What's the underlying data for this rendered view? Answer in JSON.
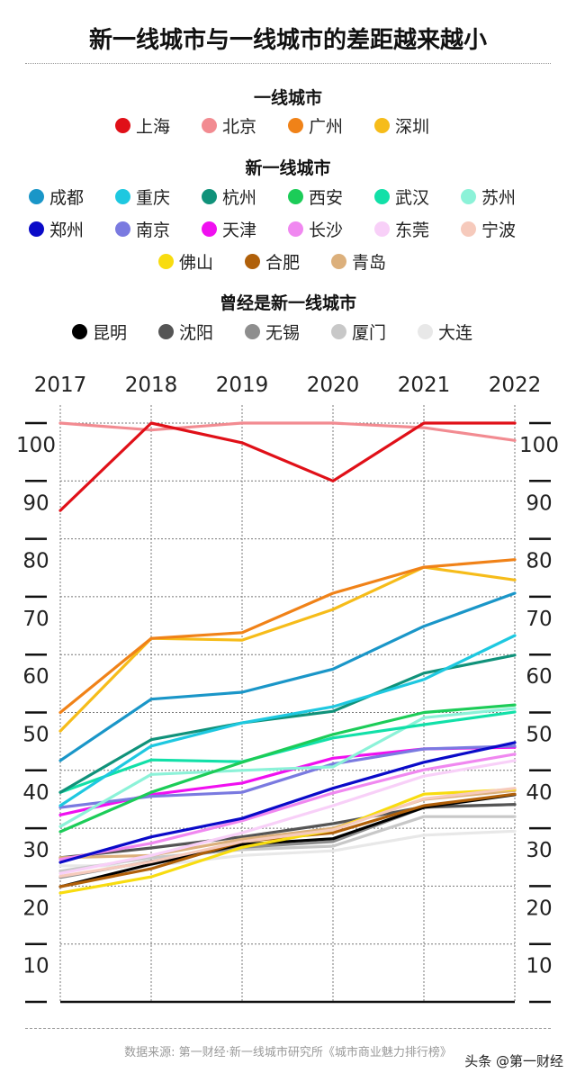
{
  "title": "新一线城市与一线城市的差距越来越小",
  "legend": {
    "groups": [
      {
        "heading": "一线城市",
        "rows": [
          [
            0,
            1,
            2,
            3
          ]
        ]
      },
      {
        "heading": "新一线城市",
        "rows": [
          [
            4,
            5,
            6,
            7,
            8,
            9
          ],
          [
            10,
            11,
            12,
            13,
            14,
            15
          ],
          [
            16,
            17,
            18
          ]
        ]
      },
      {
        "heading": "曾经是新一线城市",
        "rows": [
          [
            19,
            20,
            21,
            22,
            23
          ]
        ]
      }
    ]
  },
  "source_text": "数据来源: 第一财经·新一线城市研究所《城市商业魅力排行榜》",
  "watermark": "头条 @第一财经",
  "chart_data": {
    "type": "line",
    "title": "新一线城市与一线城市的差距越来越小",
    "x": [
      "2017",
      "2018",
      "2019",
      "2020",
      "2021",
      "2022"
    ],
    "xlabel": "",
    "ylabel": "",
    "ylim": [
      0,
      100
    ],
    "yticks": [
      10,
      20,
      30,
      40,
      50,
      60,
      70,
      80,
      90,
      100
    ],
    "grid": true,
    "axis_labels_both_sides": true,
    "legend_position": "top",
    "series": [
      {
        "name": "上海",
        "group": "一线城市",
        "color": "#e01018",
        "values": [
          84.9,
          100,
          96.6,
          90,
          100,
          100
        ]
      },
      {
        "name": "北京",
        "group": "一线城市",
        "color": "#f28b91",
        "values": [
          100,
          98.8,
          100,
          100,
          99.2,
          97
        ]
      },
      {
        "name": "广州",
        "group": "一线城市",
        "color": "#f08218",
        "values": [
          50,
          62.8,
          63.8,
          70.6,
          75.1,
          76.4
        ]
      },
      {
        "name": "深圳",
        "group": "一线城市",
        "color": "#f6bc1a",
        "values": [
          46.8,
          62.8,
          62.5,
          67.8,
          75.1,
          72.9
        ]
      },
      {
        "name": "成都",
        "group": "新一线城市",
        "color": "#1a96c8",
        "values": [
          41.7,
          52.3,
          53.5,
          57.5,
          64.9,
          70.6
        ]
      },
      {
        "name": "重庆",
        "group": "新一线城市",
        "color": "#1ec8e0",
        "values": [
          33.9,
          44.2,
          48.2,
          51,
          55.7,
          63.3
        ]
      },
      {
        "name": "杭州",
        "group": "新一线城市",
        "color": "#10927a",
        "values": [
          36.2,
          45.3,
          48.2,
          50.2,
          56.8,
          59.9
        ]
      },
      {
        "name": "西安",
        "group": "新一线城市",
        "color": "#1ccc58",
        "values": [
          29.4,
          36.2,
          41.4,
          46.2,
          50,
          51.3
        ]
      },
      {
        "name": "武汉",
        "group": "新一线城市",
        "color": "#12e0a8",
        "values": [
          36.2,
          41.8,
          41.5,
          45.6,
          47.9,
          50.1
        ]
      },
      {
        "name": "苏州",
        "group": "新一线城市",
        "color": "#8cf2d8",
        "values": [
          30.3,
          39.3,
          40,
          40.6,
          49.1,
          50.7
        ]
      },
      {
        "name": "郑州",
        "group": "新一线城市",
        "color": "#0a0ac8",
        "values": [
          24.1,
          28.5,
          31.7,
          36.9,
          41.4,
          44.8
        ]
      },
      {
        "name": "南京",
        "group": "新一线城市",
        "color": "#7a7ae0",
        "values": [
          33.6,
          35.5,
          36.2,
          41.1,
          43.7,
          44.2
        ]
      },
      {
        "name": "天津",
        "group": "新一线城市",
        "color": "#f010f0",
        "values": [
          32.3,
          35.8,
          37.8,
          42.1,
          43.7,
          44
        ]
      },
      {
        "name": "长沙",
        "group": "新一线城市",
        "color": "#f088f0",
        "values": [
          24.6,
          27.4,
          31.3,
          36.1,
          40.1,
          42.8
        ]
      },
      {
        "name": "东莞",
        "group": "新一线城市",
        "color": "#f8d0f8",
        "values": [
          22.2,
          25.3,
          29.2,
          33.9,
          39,
          41.7
        ]
      },
      {
        "name": "宁波",
        "group": "新一线城市",
        "color": "#f6cabc",
        "values": [
          21.7,
          24.2,
          27.7,
          29.7,
          35.1,
          36.9
        ]
      },
      {
        "name": "佛山",
        "group": "新一线城市",
        "color": "#f8dc10",
        "values": [
          18.8,
          21.6,
          26.7,
          29.7,
          35.9,
          36.7
        ]
      },
      {
        "name": "合肥",
        "group": "新一线城市",
        "color": "#b0600a",
        "values": [
          19.9,
          23,
          27.7,
          29.2,
          33.9,
          35.9
        ]
      },
      {
        "name": "青岛",
        "group": "新一线城市",
        "color": "#dcb07c",
        "values": [
          24.9,
          25.3,
          28.1,
          30,
          35,
          36.5
        ]
      },
      {
        "name": "昆明",
        "group": "曾经是新一线城市",
        "color": "#000000",
        "values": [
          19.9,
          23.8,
          27.2,
          28.2,
          33.6,
          35.8
        ]
      },
      {
        "name": "沈阳",
        "group": "曾经是新一线城市",
        "color": "#555555",
        "values": [
          24.9,
          26.6,
          28.5,
          30.8,
          33.7,
          34.1
        ]
      },
      {
        "name": "无锡",
        "group": "曾经是新一线城市",
        "color": "#8e8e8e",
        "values": [
          21.5,
          24.3,
          26.7,
          27.7,
          33.6,
          34.1
        ]
      },
      {
        "name": "厦门",
        "group": "曾经是新一线城市",
        "color": "#c8c8c8",
        "values": [
          22.6,
          24.9,
          26.3,
          26.9,
          32,
          32
        ]
      },
      {
        "name": "大连",
        "group": "曾经是新一线城市",
        "color": "#e8e8e8",
        "values": [
          23.5,
          23.5,
          25.3,
          26.1,
          28.8,
          29.5
        ]
      }
    ]
  }
}
